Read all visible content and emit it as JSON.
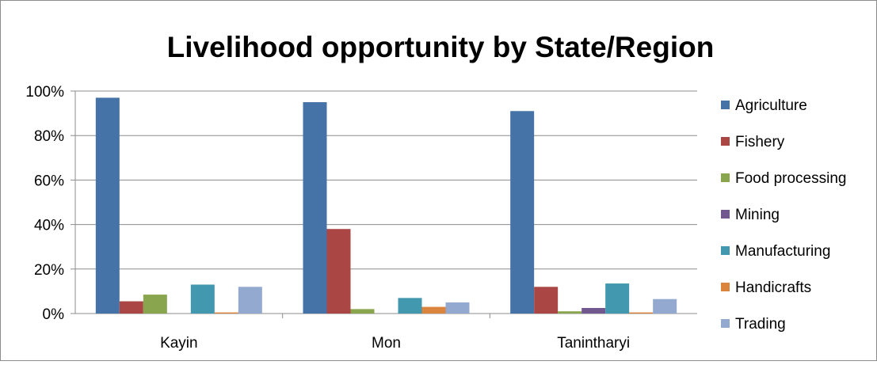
{
  "chart_data": {
    "type": "bar",
    "title": "Livelihood opportunity by State/Region",
    "xlabel": "",
    "ylabel": "",
    "ylim": [
      0,
      100
    ],
    "y_ticks": [
      "0%",
      "20%",
      "40%",
      "60%",
      "80%",
      "100%"
    ],
    "y_tick_values": [
      0,
      20,
      40,
      60,
      80,
      100
    ],
    "grid": true,
    "legend_position": "right",
    "categories": [
      "Kayin",
      "Mon",
      "Tanintharyi"
    ],
    "series": [
      {
        "name": "Agriculture",
        "color": "#4572A7",
        "values": [
          97,
          95,
          91
        ]
      },
      {
        "name": "Fishery",
        "color": "#AA4643",
        "values": [
          5.5,
          38,
          12
        ]
      },
      {
        "name": "Food processing",
        "color": "#89A54E",
        "values": [
          8.5,
          2,
          1
        ]
      },
      {
        "name": "Mining",
        "color": "#71588F",
        "values": [
          0,
          0,
          2.5
        ]
      },
      {
        "name": "Manufacturing",
        "color": "#4198AF",
        "values": [
          13,
          7,
          13.5
        ]
      },
      {
        "name": "Handicrafts",
        "color": "#DB843D",
        "values": [
          0.5,
          3,
          0.5
        ]
      },
      {
        "name": "Trading",
        "color": "#93A9CF",
        "values": [
          12,
          5,
          6.5
        ]
      }
    ]
  }
}
